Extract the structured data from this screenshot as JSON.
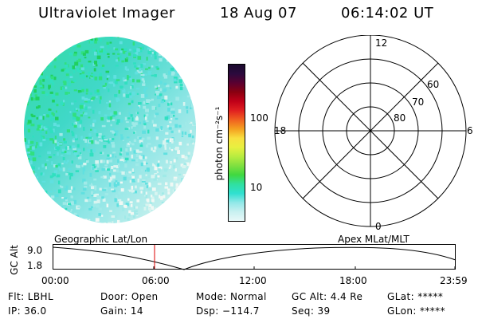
{
  "header": {
    "title": "Ultraviolet Imager",
    "date": "18 Aug 07",
    "time": "06:14:02 UT"
  },
  "colorbar": {
    "unit_label": "photon cm⁻²s⁻¹",
    "ticks": [
      "100",
      "10"
    ],
    "colors": [
      "#1a0a2e",
      "#2b0a3d",
      "#5a0030",
      "#8a0010",
      "#c00018",
      "#e02020",
      "#f06020",
      "#f4a020",
      "#f8e040",
      "#e8f040",
      "#b8ec40",
      "#80e040",
      "#40d840",
      "#30e0a0",
      "#30e0d0",
      "#90e8e8",
      "#c8f0f0",
      "#e8f8f8"
    ]
  },
  "polar": {
    "labels": {
      "top": "12",
      "bottom": "0",
      "left": "18",
      "right": "6"
    },
    "lat_labels": [
      "60",
      "70",
      "80"
    ]
  },
  "timeline": {
    "left_label": "Geographic Lat/Lon",
    "right_label": "Apex MLat/MLT",
    "y_axis_label": "GC Alt",
    "y_ticks": [
      "9.0",
      "1.8"
    ],
    "x_ticks": [
      "00:00",
      "06:00",
      "12:00",
      "18:00",
      "23:59"
    ],
    "marker_color": "#dd0000"
  },
  "info": {
    "flt": "Flt: LBHL",
    "ip": "IP: 36.0",
    "door": "Door: Open",
    "gain": "Gain: 14",
    "mode": "Mode: Normal",
    "dsp": "Dsp: −114.7",
    "gc_alt": "GC Alt: 4.4 Re",
    "seq": "Seq: 39",
    "glat": "GLat: *****",
    "glon": "GLon: *****"
  }
}
